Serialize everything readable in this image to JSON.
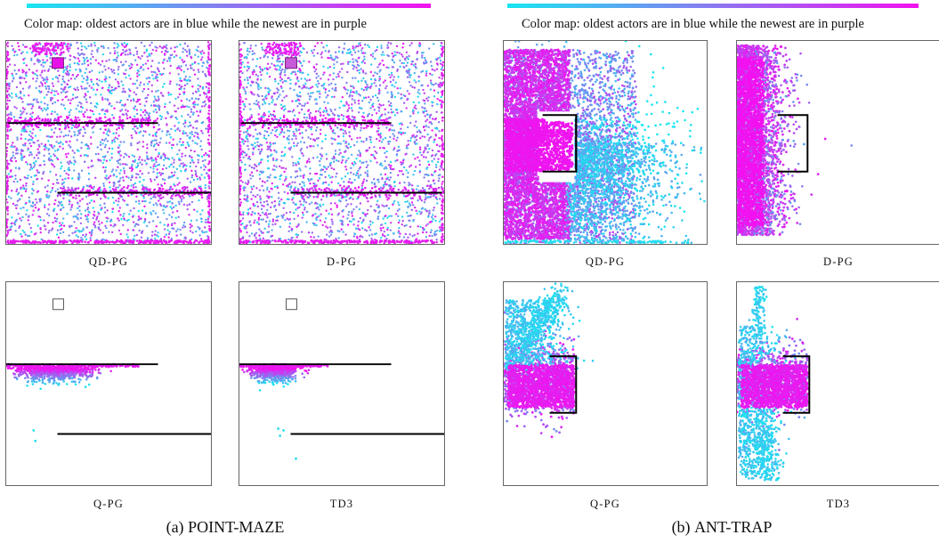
{
  "colormap": {
    "caption": "Color map: oldest actors are in blue while the newest are in purple",
    "oldest_color": "#18e6f0",
    "newest_color": "#f211f0"
  },
  "point_maze": {
    "caption_prefix": "(a) ",
    "caption_name": "POINT-MAZE",
    "panels": [
      {
        "label": "QD-PG",
        "pattern": "spread"
      },
      {
        "label": "D-PG",
        "pattern": "spread"
      },
      {
        "label": "Q-PG",
        "pattern": "stuck"
      },
      {
        "label": "TD3",
        "pattern": "stuck"
      }
    ]
  },
  "ant_trap": {
    "caption_prefix": "(b) ",
    "caption_name": "ANT-TRAP",
    "panels": [
      {
        "label": "QD-PG",
        "pattern": "wide"
      },
      {
        "label": "D-PG",
        "pattern": "left"
      },
      {
        "label": "Q-PG",
        "pattern": "trapped"
      },
      {
        "label": "TD3",
        "pattern": "trapped"
      }
    ]
  }
}
